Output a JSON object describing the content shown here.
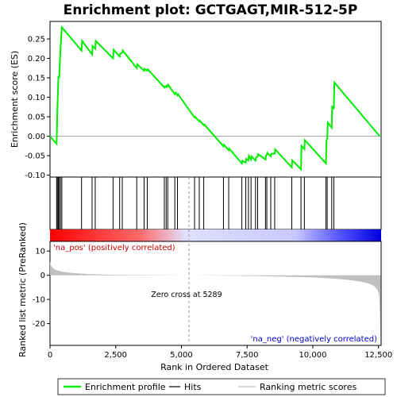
{
  "chart_data": {
    "type": "line",
    "title": "Enrichment plot: GCTGAGT,MIR-512-5P",
    "xlabel": "Rank in Ordered Dataset",
    "x_ticks": [
      0,
      2500,
      5000,
      7500,
      10000,
      12500
    ],
    "x_tick_labels": [
      "0",
      "2,500",
      "5,000",
      "7,500",
      "10,000",
      "12,500"
    ],
    "xlim": [
      0,
      12600
    ],
    "es_panel": {
      "ylabel": "Enrichment score (ES)",
      "ylim": [
        -0.105,
        0.295
      ],
      "y_ticks": [
        -0.1,
        -0.05,
        0.0,
        0.05,
        0.1,
        0.15,
        0.2,
        0.25
      ],
      "y_tick_labels": [
        "-0.10",
        "-0.05",
        "0.00",
        "0.05",
        "0.10",
        "0.15",
        "0.20",
        "0.25"
      ],
      "grid": false,
      "series": [
        {
          "name": "Enrichment profile",
          "color": "#00ee00",
          "x": [
            0,
            250,
            280,
            320,
            350,
            400,
            450,
            1200,
            1220,
            1600,
            1620,
            1720,
            1740,
            2400,
            2420,
            2650,
            2670,
            2750,
            2770,
            3300,
            3320,
            3580,
            3600,
            3700,
            3720,
            4350,
            4370,
            4420,
            4440,
            4480,
            4500,
            4750,
            4780,
            4850,
            4870,
            5500,
            5520,
            5680,
            5700,
            5850,
            5870,
            6600,
            6620,
            6800,
            6820,
            7300,
            7320,
            7450,
            7470,
            7550,
            7570,
            7650,
            7670,
            7820,
            7840,
            7900,
            7920,
            8200,
            8220,
            8250,
            8270,
            8400,
            8420,
            8550,
            8570,
            9200,
            9220,
            9550,
            9570,
            9680,
            9700,
            10500,
            10520,
            10550,
            10570,
            10720,
            10740,
            10800,
            10820,
            12550
          ],
          "y": [
            0.0,
            -0.02,
            0.07,
            0.155,
            0.15,
            0.225,
            0.28,
            0.22,
            0.245,
            0.21,
            0.232,
            0.225,
            0.245,
            0.2,
            0.222,
            0.205,
            0.212,
            0.215,
            0.22,
            0.175,
            0.185,
            0.168,
            0.173,
            0.168,
            0.172,
            0.125,
            0.128,
            0.126,
            0.13,
            0.128,
            0.132,
            0.108,
            0.112,
            0.105,
            0.108,
            0.048,
            0.05,
            0.038,
            0.04,
            0.028,
            0.03,
            -0.026,
            -0.022,
            -0.036,
            -0.032,
            -0.07,
            -0.063,
            -0.068,
            -0.058,
            -0.062,
            -0.05,
            -0.06,
            -0.052,
            -0.063,
            -0.055,
            -0.052,
            -0.046,
            -0.06,
            -0.05,
            -0.048,
            -0.043,
            -0.052,
            -0.045,
            -0.045,
            -0.034,
            -0.08,
            -0.062,
            -0.085,
            -0.025,
            -0.033,
            -0.01,
            -0.07,
            -0.012,
            -0.005,
            0.035,
            0.022,
            0.078,
            0.07,
            0.138,
            0.0
          ]
        }
      ]
    },
    "hits": [
      250,
      280,
      320,
      350,
      400,
      450,
      1200,
      1600,
      1720,
      2400,
      2650,
      2750,
      3300,
      3580,
      3700,
      4350,
      4420,
      4480,
      4750,
      4850,
      5500,
      5680,
      5850,
      6600,
      6800,
      7300,
      7450,
      7550,
      7650,
      7820,
      7900,
      8200,
      8250,
      8400,
      8550,
      9200,
      9550,
      9680,
      10500,
      10550,
      10720,
      10800
    ],
    "rank_metric_panel": {
      "ylabel": "Ranked list metric (PreRanked)",
      "ylim": [
        -29,
        14
      ],
      "y_ticks": [
        -20,
        -10,
        0,
        10
      ],
      "y_tick_labels": [
        "-20",
        "-10",
        "0",
        "10"
      ],
      "zero_cross": 5289,
      "zero_cross_label": "Zero cross at 5289",
      "pos_label": "'na_pos' (positively correlated)",
      "neg_label": "'na_neg' (negatively correlated)",
      "fill_color": "#c0c0c0",
      "profile": {
        "x": [
          0,
          30,
          100,
          200,
          400,
          700,
          1000,
          1500,
          2000,
          3000,
          4000,
          5289,
          6500,
          8000,
          9000,
          10000,
          10800,
          11300,
          11800,
          12100,
          12300,
          12450,
          12520,
          12550,
          12580
        ],
        "y": [
          5.8,
          4.2,
          3.0,
          2.3,
          1.6,
          1.1,
          0.8,
          0.5,
          0.3,
          0.15,
          0.07,
          0.0,
          -0.15,
          -0.35,
          -0.6,
          -0.9,
          -1.4,
          -1.9,
          -2.6,
          -3.3,
          -4.2,
          -5.8,
          -8.0,
          -13.0,
          -29.0
        ]
      }
    },
    "legend": {
      "placement": "bottom",
      "entries": [
        {
          "label": "Enrichment profile",
          "color": "#00ee00"
        },
        {
          "label": "Hits",
          "color": "#000000"
        },
        {
          "label": "Ranking metric scores",
          "color": "#c0c0c0"
        }
      ]
    },
    "colors": {
      "label_pos": "#cc0000",
      "label_neg": "#0000cc",
      "zero_cross_line": "#999999",
      "strip_pos": "#ff0000",
      "strip_mid": "#e0e0ff",
      "strip_neg": "#0000dd"
    }
  }
}
